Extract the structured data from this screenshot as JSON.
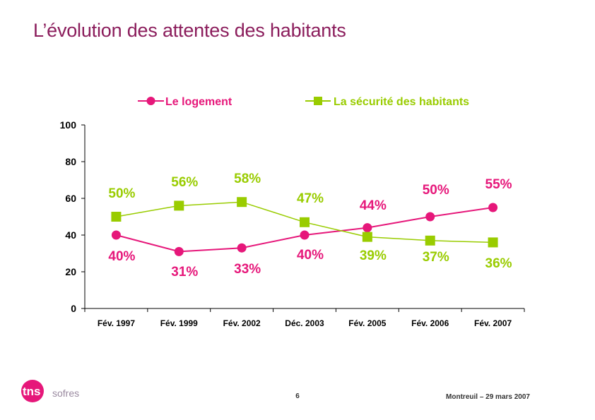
{
  "slide": {
    "title": "L’évolution des attentes des habitants",
    "page_number": "6",
    "footer": "Montreuil – 29 mars 2007",
    "logo": {
      "brand": "tns",
      "sub": "sofres"
    }
  },
  "colors": {
    "title": "#8b1d5c",
    "logement": "#e6177a",
    "securite": "#99cc00",
    "axis": "#000000"
  },
  "chart_data": {
    "type": "line",
    "title": "",
    "xlabel": "",
    "ylabel": "",
    "ylim": [
      0,
      100
    ],
    "yticks": [
      "0",
      "20",
      "40",
      "60",
      "80",
      "100"
    ],
    "ytick_values": [
      0,
      20,
      40,
      60,
      80,
      100
    ],
    "grid": false,
    "legend_position": "top",
    "categories": [
      "Fév. 1997",
      "Fév. 1999",
      "Fév. 2002",
      "Déc. 2003",
      "Fév. 2005",
      "Fév. 2006",
      "Fév. 2007"
    ],
    "series": [
      {
        "name": "Le logement",
        "marker": "circle",
        "color": "#e6177a",
        "values": [
          40,
          31,
          33,
          40,
          44,
          50,
          55
        ],
        "labels": [
          "40%",
          "31%",
          "33%",
          "40%",
          "44%",
          "50%",
          "55%"
        ]
      },
      {
        "name": "La sécurité des habitants",
        "marker": "square",
        "color": "#99cc00",
        "values": [
          50,
          56,
          58,
          47,
          39,
          37,
          36
        ],
        "labels": [
          "50%",
          "56%",
          "58%",
          "47%",
          "39%",
          "37%",
          "36%"
        ]
      }
    ]
  }
}
